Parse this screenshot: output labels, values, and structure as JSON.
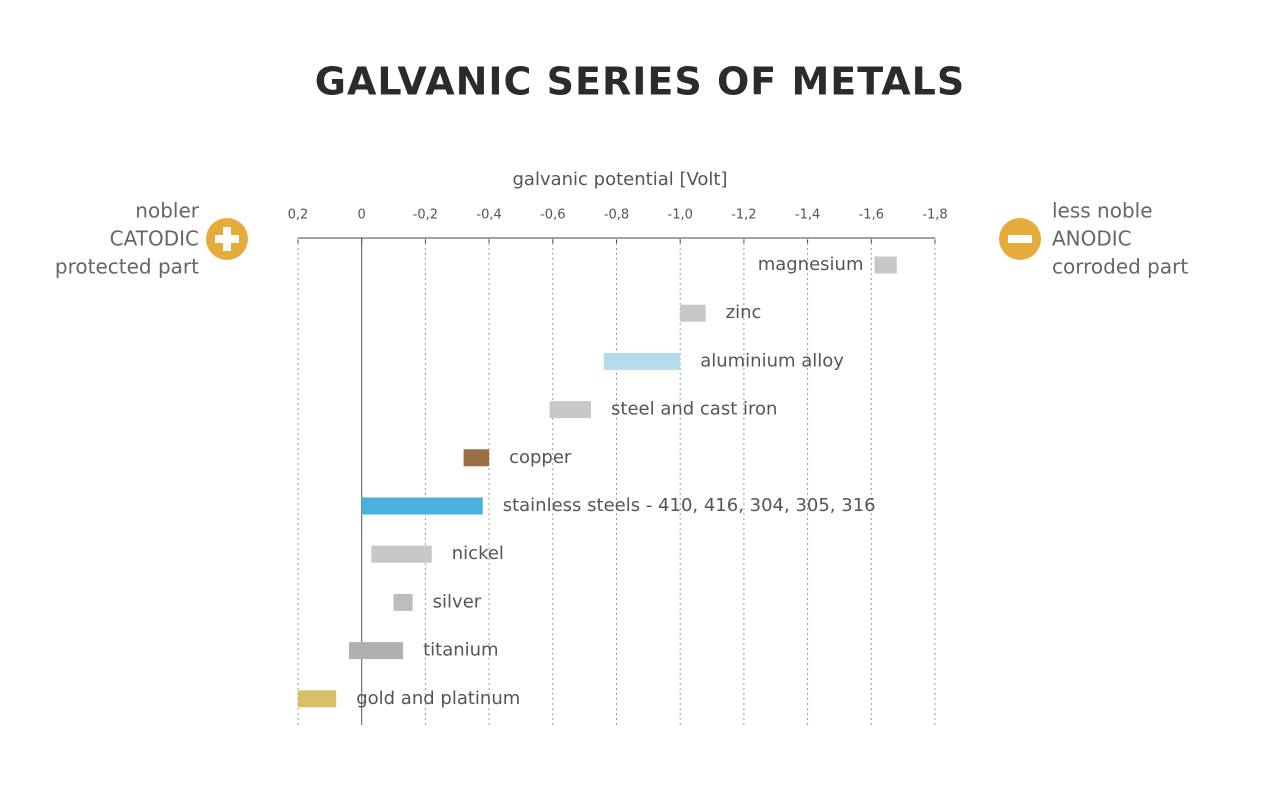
{
  "chart_data": {
    "type": "range-bar",
    "title": "GALVANIC SERIES OF METALS",
    "xlabel": "galvanic potential [Volt]",
    "left_note": [
      "nobler",
      "CATODIC",
      "protected part"
    ],
    "right_note": [
      "less noble",
      "ANODIC",
      "corroded part"
    ],
    "categories": [
      "magnesium",
      "zinc",
      "aluminium alloy",
      "steel and cast iron",
      "copper",
      "stainless steels - 410, 416, 304, 305, 316",
      "nickel",
      "silver",
      "titanium",
      "gold and platinum"
    ],
    "start": [
      -1.61,
      -1.0,
      -0.76,
      -0.59,
      -0.32,
      0,
      -0.03,
      -0.1,
      0.04,
      0.2
    ],
    "end": [
      -1.68,
      -1.08,
      -1.0,
      -0.72,
      -0.4,
      -0.38,
      -0.22,
      -0.16,
      -0.13,
      0.08
    ],
    "colors": [
      "#c8c8c8",
      "#c8c8c8",
      "#b5dced",
      "#c8c8c8",
      "#9a6d42",
      "#4ab0dc",
      "#c8c8c8",
      "#bdbdbd",
      "#b0b0b0",
      "#d9bf6a"
    ],
    "xlim": [
      0.2,
      -1.8
    ],
    "xticks": [
      {
        "value": 0.2,
        "label": "0,2"
      },
      0,
      {
        "value": -0.2,
        "label": "-0,2"
      },
      {
        "value": -0.4,
        "label": "-0,4"
      },
      {
        "value": -0.6,
        "label": "-0,6"
      },
      {
        "value": -0.8,
        "label": "-0,8"
      },
      {
        "value": -1.0,
        "label": "-1,0"
      },
      {
        "value": -1.2,
        "label": "-1,2"
      },
      {
        "value": -1.4,
        "label": "-1,4"
      },
      {
        "value": -1.6,
        "label": "-1,6"
      },
      {
        "value": -1.8,
        "label": "-1,8"
      }
    ],
    "grid": true
  }
}
